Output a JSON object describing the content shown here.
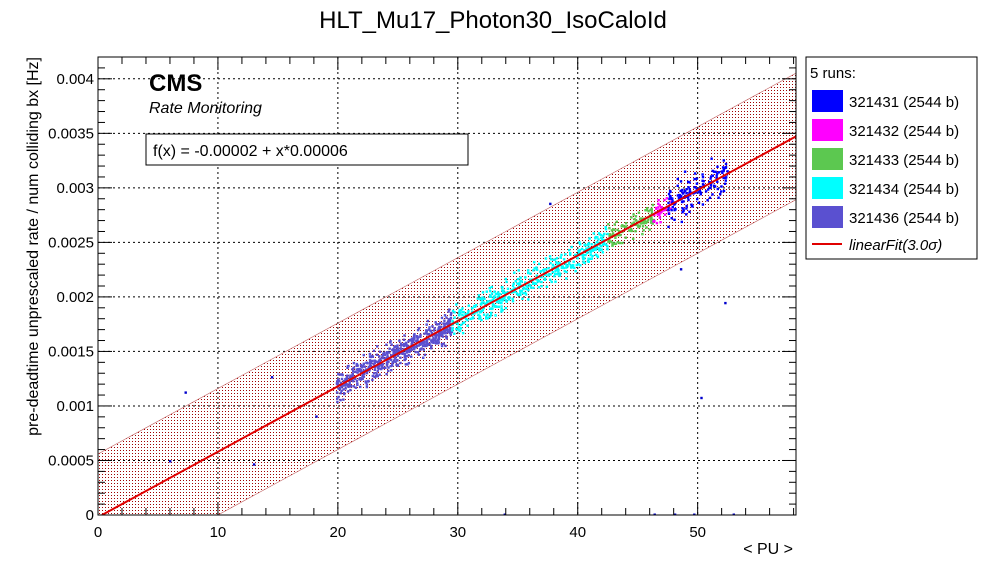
{
  "chart_data": {
    "type": "scatter",
    "title": "HLT_Mu17_Photon30_IsoCaloId",
    "xlabel": "< PU >",
    "ylabel": "pre-deadtime unprescaled rate / num colliding bx [Hz]",
    "xlim": [
      0,
      58.2
    ],
    "ylim": [
      0,
      0.0042
    ],
    "x_ticks": [
      0,
      10,
      20,
      30,
      40,
      50
    ],
    "x_tick_labels": [
      "0",
      "10",
      "20",
      "30",
      "40",
      "50"
    ],
    "y_ticks": [
      0,
      0.0005,
      0.001,
      0.0015,
      0.002,
      0.0025,
      0.003,
      0.0035,
      0.004
    ],
    "y_tick_labels": [
      "0",
      "0.0005",
      "0.001",
      "0.0015",
      "0.002",
      "0.0025",
      "0.003",
      "0.0035",
      "0.004"
    ],
    "grid": true,
    "cms_label": "CMS",
    "cms_sublabel": "Rate Monitoring",
    "fit": {
      "label": "f(x) = -0.00002 + x*0.00006",
      "intercept": -2e-05,
      "slope": 6e-05,
      "band_halfwidth": 0.00058,
      "color": "#e00000",
      "band_color": "#a00000"
    },
    "legend": {
      "header": "5 runs:",
      "position": "right-outside",
      "entries": [
        {
          "label": "321431 (2544 b)",
          "color": "#0000ff"
        },
        {
          "label": "321432 (2544 b)",
          "color": "#ff00ff"
        },
        {
          "label": "321433 (2544 b)",
          "color": "#5cc850"
        },
        {
          "label": "321434 (2544 b)",
          "color": "#00ffff"
        },
        {
          "label": "321436 (2544 b)",
          "color": "#5a50d0"
        }
      ],
      "fit_entry": "linearFit(3.0σ)"
    },
    "series": [
      {
        "name": "321436 (2544 b)",
        "color": "#5a50d0",
        "x_range": [
          19.9,
          29.5
        ],
        "count": 520,
        "spread": 0.00013
      },
      {
        "name": "321434 (2544 b)",
        "color": "#00ffff",
        "x_range": [
          29.5,
          42.5
        ],
        "count": 430,
        "spread": 0.00013
      },
      {
        "name": "321433 (2544 b)",
        "color": "#5cc850",
        "x_range": [
          42.5,
          46.3
        ],
        "count": 110,
        "spread": 0.00012
      },
      {
        "name": "321432 (2544 b)",
        "color": "#ff00ff",
        "x_range": [
          46.3,
          47.8
        ],
        "count": 40,
        "spread": 0.00012
      },
      {
        "name": "321431 (2544 b)",
        "color": "#0000ff",
        "x_range": [
          47.5,
          52.5
        ],
        "count": 150,
        "spread": 0.00016
      }
    ],
    "outliers": [
      {
        "x": 7.3,
        "y": 0.00112
      },
      {
        "x": 6.0,
        "y": 0.00049
      },
      {
        "x": 13.0,
        "y": 0.00046
      },
      {
        "x": 14.5,
        "y": 0.00126
      },
      {
        "x": 18.2,
        "y": 0.0009
      },
      {
        "x": 37.7,
        "y": 0.00285
      },
      {
        "x": 50.3,
        "y": 0.00107
      },
      {
        "x": 52.3,
        "y": 0.00194
      },
      {
        "x": 48.6,
        "y": 0.00225
      },
      {
        "x": 33.9,
        "y": 0.0
      },
      {
        "x": 46.4,
        "y": 0.0
      },
      {
        "x": 48.1,
        "y": 0.0
      },
      {
        "x": 49.7,
        "y": 0.0
      },
      {
        "x": 53.0,
        "y": 0.0
      }
    ]
  }
}
